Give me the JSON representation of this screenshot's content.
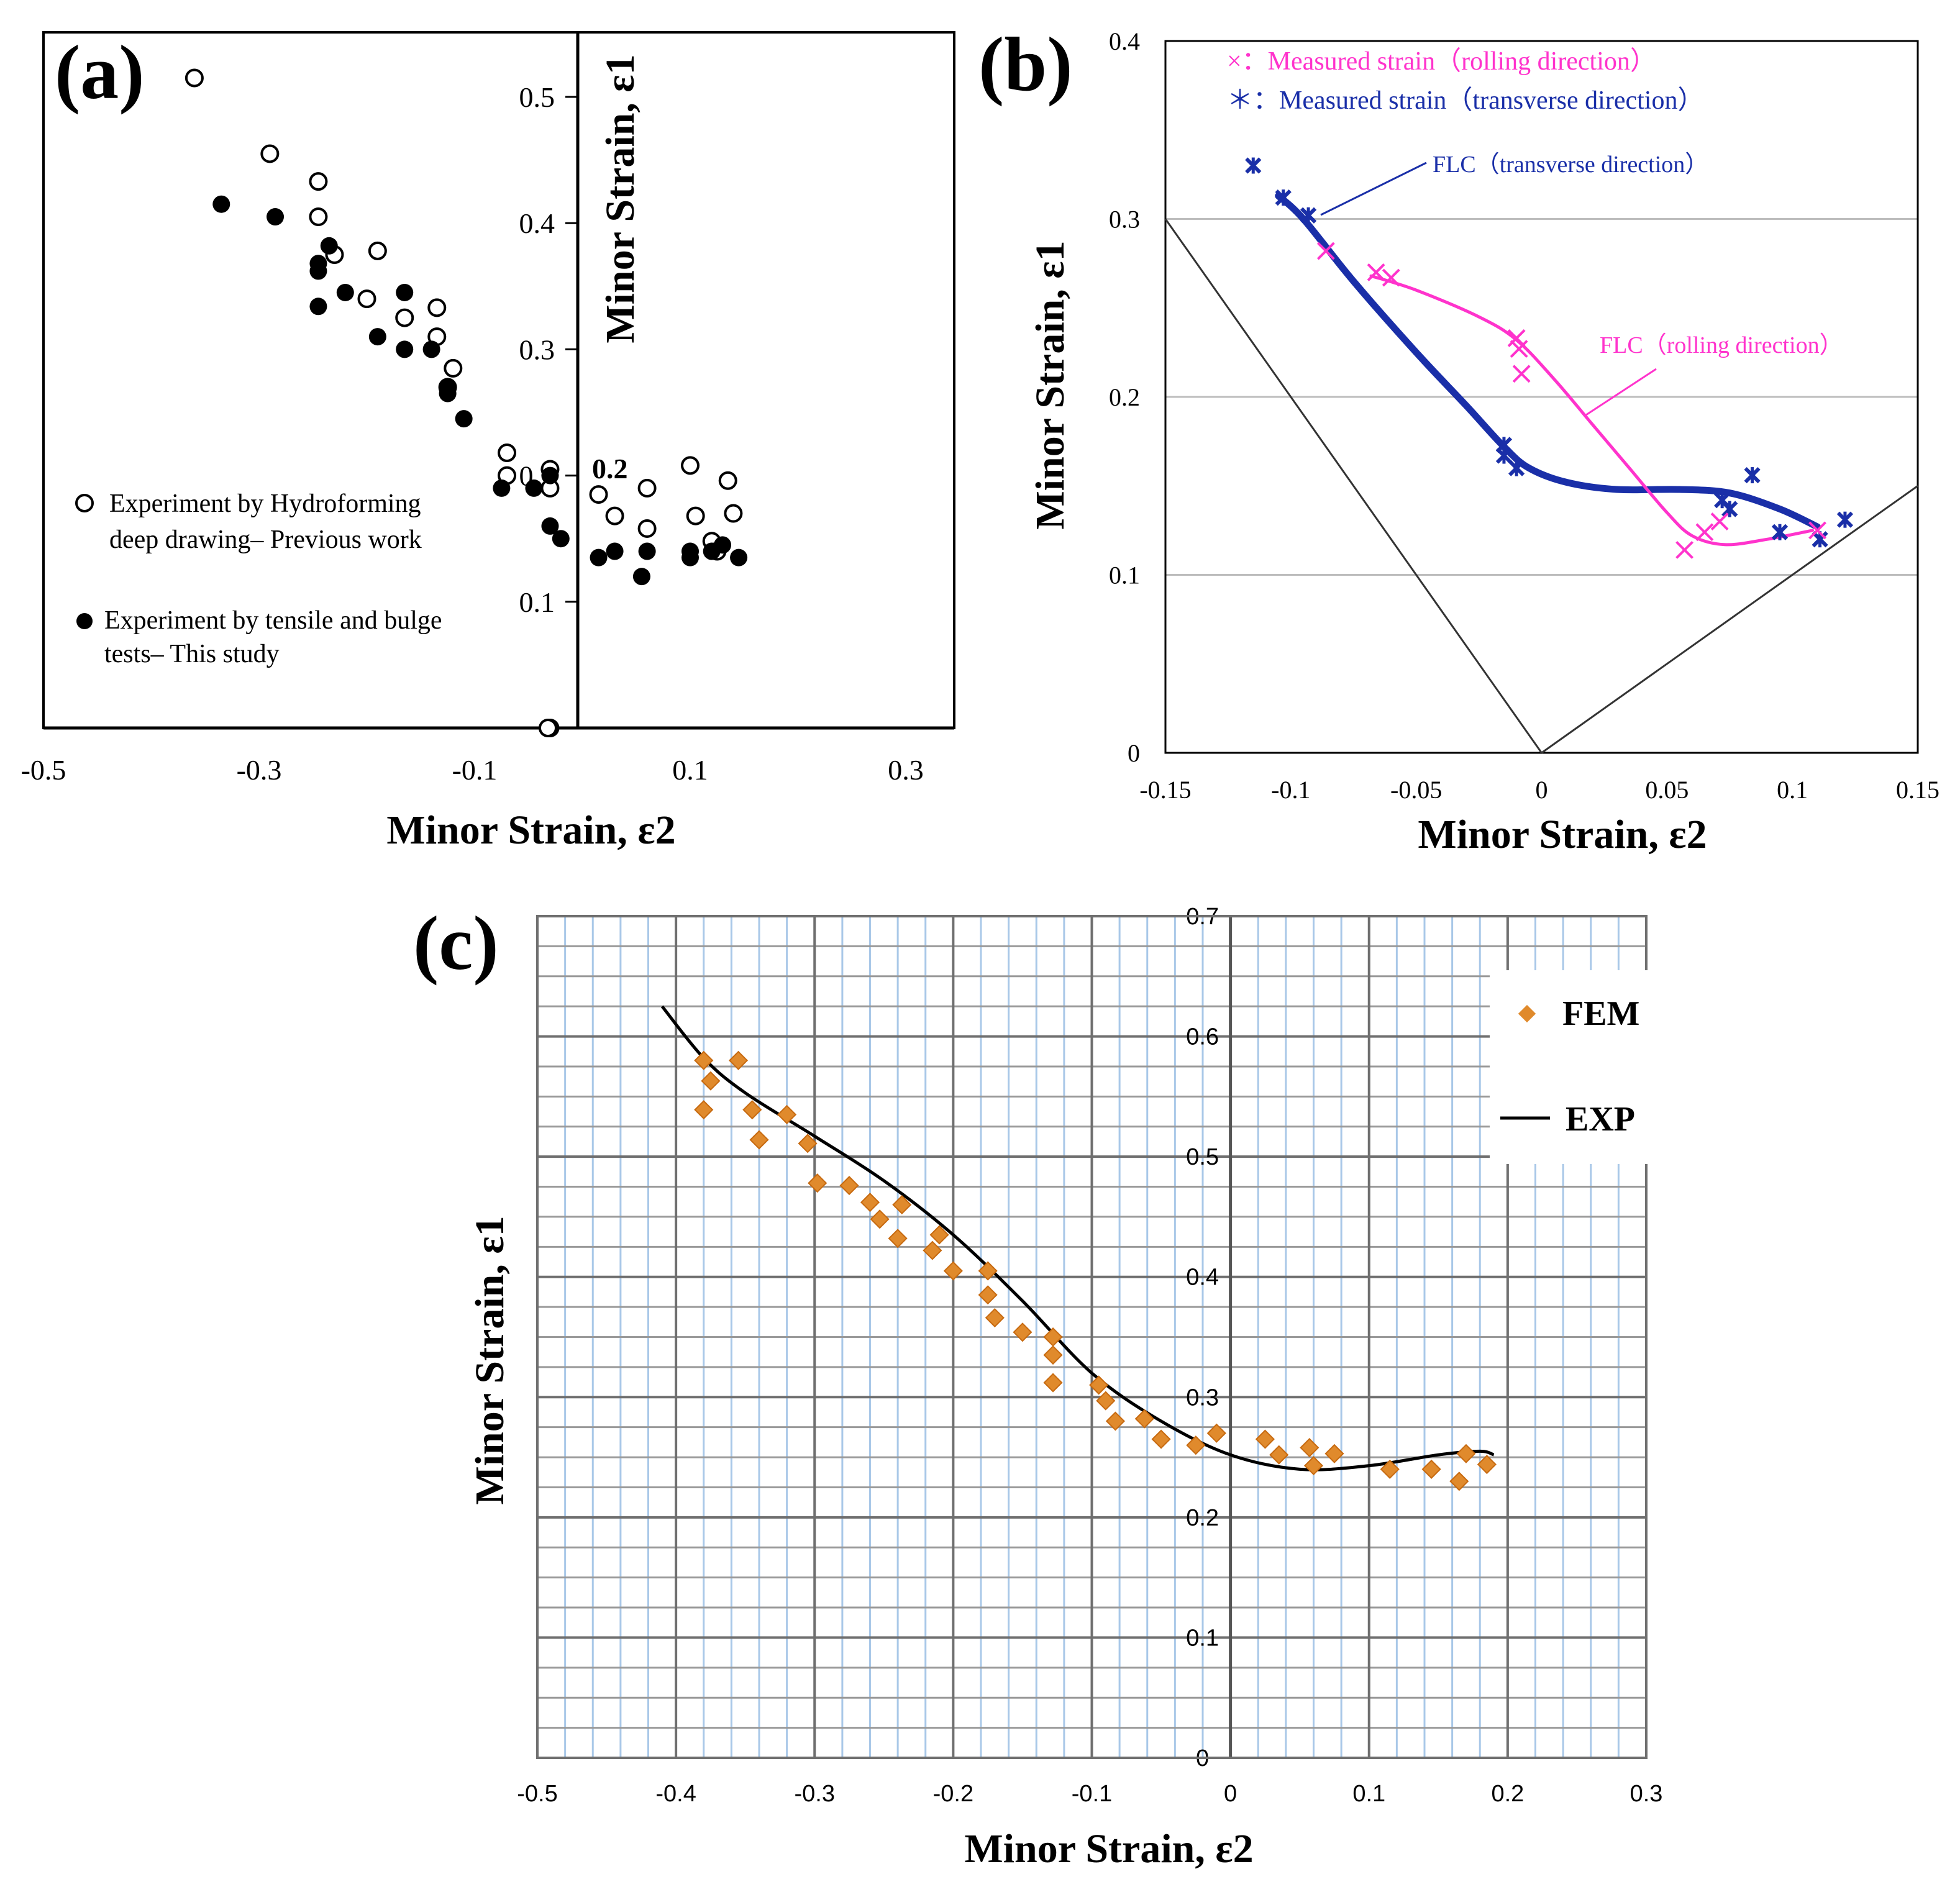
{
  "chart_data": [
    {
      "panel": "(a)",
      "type": "scatter",
      "xlabel": "Minor Strain, ε2",
      "ylabel": "Minor Strain, ε1",
      "xlim": [
        -0.5,
        0.35
      ],
      "ylim": [
        0,
        0.55
      ],
      "xticks": [
        "-0.5",
        "-0.3",
        "-0.1",
        "0.1",
        "0.3"
      ],
      "xtick_values": [
        -0.5,
        -0.3,
        -0.1,
        0.1,
        0.3
      ],
      "yticks": [
        "0.5",
        "0.4",
        "0.3",
        "0.2",
        "0.1"
      ],
      "ytick_values": [
        0.5,
        0.4,
        0.3,
        0.2,
        0.1
      ],
      "grid": false,
      "legend_position": "left",
      "series": [
        {
          "name": "Experiment by Hydroforming deep drawing– Previous work",
          "legend_lines": [
            "Experiment by Hydroforming",
            "deep drawing– Previous work"
          ],
          "marker": "open-circle",
          "points": [
            [
              -0.36,
              0.515
            ],
            [
              -0.29,
              0.455
            ],
            [
              -0.245,
              0.433
            ],
            [
              -0.245,
              0.405
            ],
            [
              -0.23,
              0.375
            ],
            [
              -0.19,
              0.378
            ],
            [
              -0.2,
              0.34
            ],
            [
              -0.165,
              0.325
            ],
            [
              -0.135,
              0.333
            ],
            [
              -0.135,
              0.31
            ],
            [
              -0.12,
              0.285
            ],
            [
              -0.125,
              0.27
            ],
            [
              -0.07,
              0.218
            ],
            [
              -0.07,
              0.2
            ],
            [
              -0.03,
              0.205
            ],
            [
              -0.03,
              0.19
            ],
            [
              0.015,
              0.185
            ],
            [
              0.03,
              0.168
            ],
            [
              0.06,
              0.19
            ],
            [
              0.06,
              0.158
            ],
            [
              0.1,
              0.208
            ],
            [
              0.105,
              0.168
            ],
            [
              0.135,
              0.196
            ],
            [
              0.14,
              0.17
            ],
            [
              0.12,
              0.148
            ],
            [
              0.125,
              0.14
            ],
            [
              -0.03,
              0.0
            ],
            [
              -0.032,
              0.0
            ]
          ]
        },
        {
          "name": "Experiment by tensile and bulge tests– This study",
          "legend_lines": [
            "Experiment by tensile and bulge",
            "tests– This study"
          ],
          "marker": "filled-circle",
          "points": [
            [
              -0.335,
              0.415
            ],
            [
              -0.285,
              0.405
            ],
            [
              -0.235,
              0.382
            ],
            [
              -0.245,
              0.368
            ],
            [
              -0.245,
              0.362
            ],
            [
              -0.245,
              0.334
            ],
            [
              -0.22,
              0.345
            ],
            [
              -0.19,
              0.31
            ],
            [
              -0.165,
              0.345
            ],
            [
              -0.165,
              0.3
            ],
            [
              -0.14,
              0.3
            ],
            [
              -0.125,
              0.27
            ],
            [
              -0.125,
              0.265
            ],
            [
              -0.11,
              0.245
            ],
            [
              -0.075,
              0.19
            ],
            [
              -0.045,
              0.19
            ],
            [
              -0.03,
              0.2
            ],
            [
              -0.03,
              0.16
            ],
            [
              -0.02,
              0.15
            ],
            [
              0.015,
              0.135
            ],
            [
              0.03,
              0.14
            ],
            [
              0.055,
              0.12
            ],
            [
              0.06,
              0.14
            ],
            [
              0.1,
              0.135
            ],
            [
              0.1,
              0.14
            ],
            [
              0.12,
              0.14
            ],
            [
              0.13,
              0.145
            ],
            [
              0.145,
              0.135
            ]
          ]
        }
      ],
      "annotation": "0.2"
    },
    {
      "panel": "(b)",
      "type": "line",
      "xlabel": "Minor Strain, ε2",
      "ylabel": "Minor Strain, ε1",
      "xlim": [
        -0.15,
        0.15
      ],
      "ylim": [
        0,
        0.4
      ],
      "xticks": [
        "-0.15",
        "-0.1",
        "-0.05",
        "0",
        "0.05",
        "0.1",
        "0.15"
      ],
      "xtick_values": [
        -0.15,
        -0.1,
        -0.05,
        0,
        0.05,
        0.1,
        0.15
      ],
      "yticks": [
        "0",
        "0.1",
        "0.2",
        "0.3",
        "0.4"
      ],
      "ytick_values": [
        0,
        0.1,
        0.2,
        0.3,
        0.4
      ],
      "grid": true,
      "legend_position": "top",
      "legend": [
        {
          "text": "×：Measured strain（rolling direction）",
          "color": "#ff33cc"
        },
        {
          "text": "＊：Measured strain（transverse direction）",
          "color": "#1a2fa8"
        }
      ],
      "reference_lines": [
        {
          "points": [
            [
              -0.15,
              0.3
            ],
            [
              0,
              0
            ]
          ]
        },
        {
          "points": [
            [
              0,
              0
            ],
            [
              0.15,
              0.15
            ]
          ]
        }
      ],
      "series": [
        {
          "name": "FLC（transverse direction）",
          "color": "#1a2fa8",
          "curve": [
            [
              -0.105,
              0.313
            ],
            [
              -0.095,
              0.3
            ],
            [
              -0.075,
              0.265
            ],
            [
              -0.05,
              0.225
            ],
            [
              -0.03,
              0.195
            ],
            [
              -0.015,
              0.172
            ],
            [
              -0.005,
              0.16
            ],
            [
              0.01,
              0.152
            ],
            [
              0.03,
              0.148
            ],
            [
              0.055,
              0.148
            ],
            [
              0.075,
              0.146
            ],
            [
              0.095,
              0.137
            ],
            [
              0.11,
              0.127
            ]
          ],
          "points": [
            [
              -0.115,
              0.33
            ],
            [
              -0.103,
              0.312
            ],
            [
              -0.093,
              0.302
            ],
            [
              -0.015,
              0.173
            ],
            [
              -0.015,
              0.167
            ],
            [
              -0.01,
              0.16
            ],
            [
              0.072,
              0.142
            ],
            [
              0.075,
              0.137
            ],
            [
              0.084,
              0.156
            ],
            [
              0.095,
              0.124
            ],
            [
              0.111,
              0.12
            ],
            [
              0.121,
              0.131
            ]
          ]
        },
        {
          "name": "FLC（rolling direction）",
          "color": "#ff33cc",
          "curve": [
            [
              -0.068,
              0.268
            ],
            [
              -0.05,
              0.26
            ],
            [
              -0.025,
              0.245
            ],
            [
              -0.01,
              0.232
            ],
            [
              0.005,
              0.21
            ],
            [
              0.02,
              0.185
            ],
            [
              0.035,
              0.16
            ],
            [
              0.05,
              0.135
            ],
            [
              0.06,
              0.122
            ],
            [
              0.073,
              0.117
            ],
            [
              0.09,
              0.12
            ],
            [
              0.108,
              0.125
            ]
          ],
          "points": [
            [
              -0.086,
              0.282
            ],
            [
              -0.066,
              0.27
            ],
            [
              -0.06,
              0.267
            ],
            [
              -0.01,
              0.233
            ],
            [
              -0.009,
              0.227
            ],
            [
              -0.008,
              0.213
            ],
            [
              0.057,
              0.114
            ],
            [
              0.065,
              0.124
            ],
            [
              0.071,
              0.13
            ],
            [
              0.11,
              0.125
            ]
          ]
        }
      ]
    },
    {
      "panel": "(c)",
      "type": "line",
      "xlabel": "Minor Strain, ε2",
      "ylabel": "Minor Strain, ε1",
      "xlim": [
        -0.5,
        0.3
      ],
      "ylim": [
        0,
        0.7
      ],
      "xticks": [
        "-0.5",
        "-0.4",
        "-0.3",
        "-0.2",
        "-0.1",
        "0",
        "0.1",
        "0.2",
        "0.3"
      ],
      "xtick_values": [
        -0.5,
        -0.4,
        -0.3,
        -0.2,
        -0.1,
        0,
        0.1,
        0.2,
        0.3
      ],
      "yticks": [
        "0",
        "0.1",
        "0.2",
        "0.3",
        "0.4",
        "0.5",
        "0.6",
        "0.7"
      ],
      "ytick_values": [
        0,
        0.1,
        0.2,
        0.3,
        0.4,
        0.5,
        0.6,
        0.7
      ],
      "grid": true,
      "legend_position": "top-right",
      "series": [
        {
          "name": "FEM",
          "marker": "diamond",
          "color": "#e08a2c",
          "points": [
            [
              -0.38,
              0.58
            ],
            [
              -0.375,
              0.563
            ],
            [
              -0.355,
              0.58
            ],
            [
              -0.38,
              0.539
            ],
            [
              -0.345,
              0.539
            ],
            [
              -0.34,
              0.514
            ],
            [
              -0.32,
              0.535
            ],
            [
              -0.305,
              0.511
            ],
            [
              -0.298,
              0.478
            ],
            [
              -0.275,
              0.476
            ],
            [
              -0.26,
              0.462
            ],
            [
              -0.253,
              0.448
            ],
            [
              -0.24,
              0.432
            ],
            [
              -0.237,
              0.46
            ],
            [
              -0.21,
              0.435
            ],
            [
              -0.215,
              0.422
            ],
            [
              -0.2,
              0.405
            ],
            [
              -0.175,
              0.405
            ],
            [
              -0.175,
              0.385
            ],
            [
              -0.17,
              0.366
            ],
            [
              -0.15,
              0.354
            ],
            [
              -0.128,
              0.35
            ],
            [
              -0.128,
              0.335
            ],
            [
              -0.128,
              0.312
            ],
            [
              -0.095,
              0.31
            ],
            [
              -0.09,
              0.297
            ],
            [
              -0.083,
              0.28
            ],
            [
              -0.062,
              0.282
            ],
            [
              -0.05,
              0.265
            ],
            [
              -0.025,
              0.26
            ],
            [
              -0.01,
              0.27
            ],
            [
              0.025,
              0.265
            ],
            [
              0.035,
              0.252
            ],
            [
              0.057,
              0.258
            ],
            [
              0.06,
              0.243
            ],
            [
              0.075,
              0.253
            ],
            [
              0.115,
              0.24
            ],
            [
              0.145,
              0.24
            ],
            [
              0.165,
              0.23
            ],
            [
              0.17,
              0.253
            ],
            [
              0.185,
              0.244
            ]
          ]
        },
        {
          "name": "EXP",
          "color": "#000000",
          "curve": [
            [
              -0.41,
              0.625
            ],
            [
              -0.38,
              0.582
            ],
            [
              -0.35,
              0.553
            ],
            [
              -0.3,
              0.517
            ],
            [
              -0.25,
              0.48
            ],
            [
              -0.2,
              0.435
            ],
            [
              -0.15,
              0.38
            ],
            [
              -0.1,
              0.32
            ],
            [
              -0.05,
              0.28
            ],
            [
              0,
              0.252
            ],
            [
              0.05,
              0.24
            ],
            [
              0.1,
              0.243
            ],
            [
              0.15,
              0.252
            ],
            [
              0.18,
              0.255
            ],
            [
              0.19,
              0.252
            ]
          ]
        }
      ]
    }
  ]
}
